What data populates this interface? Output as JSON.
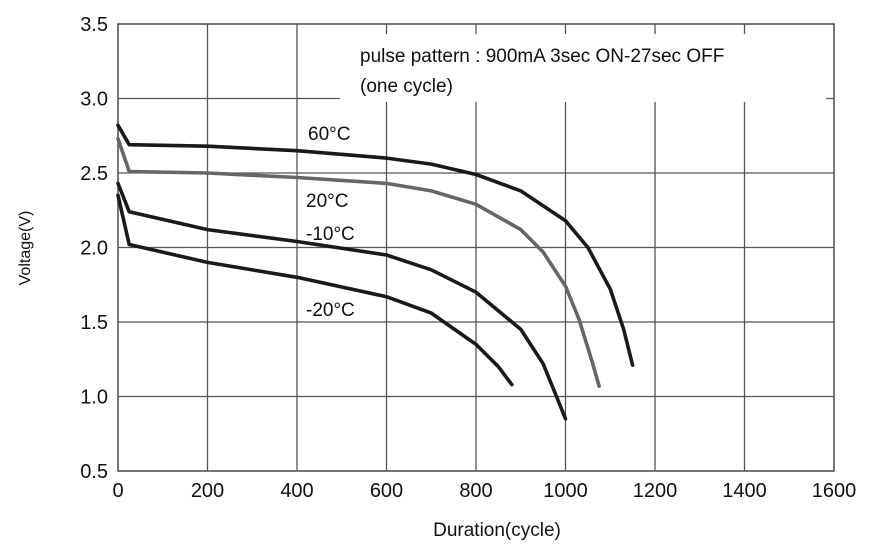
{
  "chart_data": {
    "type": "line",
    "xlabel": "Duration(cycle)",
    "ylabel": "Voltage(V)",
    "xlim": [
      0,
      1600
    ],
    "ylim": [
      0.5,
      3.5
    ],
    "x_ticks": [
      "0",
      "200",
      "400",
      "600",
      "800",
      "1000",
      "1200",
      "1400",
      "1600"
    ],
    "y_ticks": [
      "0.5",
      "1.0",
      "1.5",
      "2.0",
      "2.5",
      "3.0",
      "3.5"
    ],
    "grid": true,
    "annotation": {
      "line1": "pulse pattern : 900mA 3sec ON-27sec OFF",
      "line2": "(one cycle)"
    },
    "series": [
      {
        "name": "60°C",
        "color": "#1a1a1a",
        "x": [
          0,
          25,
          200,
          400,
          600,
          700,
          800,
          900,
          1000,
          1050,
          1100,
          1130,
          1150
        ],
        "y": [
          2.82,
          2.69,
          2.68,
          2.65,
          2.6,
          2.56,
          2.49,
          2.38,
          2.18,
          2.0,
          1.72,
          1.45,
          1.21
        ]
      },
      {
        "name": "20°C",
        "color": "#666666",
        "x": [
          0,
          25,
          200,
          400,
          600,
          700,
          800,
          900,
          950,
          1000,
          1030,
          1060,
          1075
        ],
        "y": [
          2.73,
          2.51,
          2.5,
          2.47,
          2.43,
          2.38,
          2.29,
          2.12,
          1.97,
          1.74,
          1.52,
          1.23,
          1.07
        ]
      },
      {
        "name": "-10°C",
        "color": "#1a1a1a",
        "x": [
          0,
          25,
          200,
          400,
          600,
          700,
          800,
          900,
          950,
          980,
          1000
        ],
        "y": [
          2.43,
          2.24,
          2.12,
          2.04,
          1.95,
          1.85,
          1.7,
          1.45,
          1.22,
          1.0,
          0.85
        ]
      },
      {
        "name": "-20°C",
        "color": "#1a1a1a",
        "x": [
          0,
          25,
          200,
          400,
          600,
          700,
          800,
          850,
          880
        ],
        "y": [
          2.35,
          2.02,
          1.9,
          1.8,
          1.67,
          1.56,
          1.35,
          1.2,
          1.08
        ]
      }
    ],
    "series_labels": [
      "60°C",
      "20°C",
      "-10°C",
      "-20°C"
    ]
  }
}
